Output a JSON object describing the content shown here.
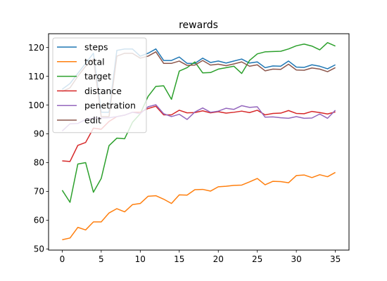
{
  "chart_data": {
    "type": "line",
    "title": "rewards",
    "xlabel": "",
    "ylabel": "",
    "xlim": [
      -1.75,
      36.75
    ],
    "ylim": [
      49.6,
      124.8
    ],
    "xticks": [
      0,
      5,
      10,
      15,
      20,
      25,
      30,
      35
    ],
    "yticks": [
      50,
      60,
      70,
      80,
      90,
      100,
      110,
      120
    ],
    "grid": false,
    "legend_position": "top-left",
    "x": [
      0,
      1,
      2,
      3,
      4,
      5,
      6,
      7,
      8,
      9,
      10,
      11,
      12,
      13,
      14,
      15,
      16,
      17,
      18,
      19,
      20,
      21,
      22,
      23,
      24,
      25,
      26,
      27,
      28,
      29,
      30,
      31,
      32,
      33,
      34,
      35
    ],
    "series": [
      {
        "name": "steps",
        "color": "#1f77b4",
        "values": [
          105.5,
          107.5,
          111,
          114.5,
          118,
          97.5,
          97.5,
          119,
          119.5,
          119.5,
          117,
          118,
          119.5,
          115.5,
          115.5,
          116.7,
          114.5,
          114.5,
          116.3,
          114.8,
          115.3,
          114.6,
          115.3,
          116,
          114.6,
          115,
          113,
          113.6,
          113.5,
          115.3,
          113.2,
          113.1,
          114,
          113.5,
          112.6,
          114
        ]
      },
      {
        "name": "total",
        "color": "#ff7f0e",
        "values": [
          53.2,
          53.8,
          57.5,
          56.6,
          59.4,
          59.4,
          62.5,
          64,
          62.9,
          65.4,
          65.8,
          68.3,
          68.5,
          67.3,
          65.8,
          68.8,
          68.7,
          70.6,
          70.7,
          70.1,
          71.6,
          71.8,
          72.1,
          72.2,
          73.3,
          74.5,
          72.3,
          73.5,
          73.4,
          73,
          75.5,
          75.7,
          74.8,
          75.8,
          75.1,
          76.6
        ]
      },
      {
        "name": "target",
        "color": "#2ca02c",
        "values": [
          70.4,
          66.2,
          79.5,
          80,
          69.7,
          74.5,
          85.9,
          88.5,
          88.3,
          94,
          97,
          103,
          106.5,
          106.7,
          102,
          111.8,
          113,
          115,
          111.2,
          111.3,
          112.5,
          113,
          113.5,
          111,
          115.5,
          117.8,
          118.5,
          118.6,
          118.7,
          119.5,
          120.6,
          121.2,
          120.5,
          119.2,
          121.7,
          120.5
        ]
      },
      {
        "name": "distance",
        "color": "#d62728",
        "values": [
          80.6,
          80.4,
          86,
          87,
          92,
          91.6,
          94.3,
          96,
          96.5,
          97.5,
          97.5,
          98.8,
          99.6,
          96.6,
          96.6,
          98.2,
          97.3,
          97.4,
          98,
          97.3,
          97.7,
          97.2,
          97.5,
          97.9,
          97.4,
          98.2,
          96.6,
          97.1,
          97.2,
          98.1,
          97.1,
          97,
          97.8,
          97.4,
          96.9,
          97.6
        ]
      },
      {
        "name": "penetration",
        "color": "#9467bd",
        "values": [
          91,
          93.5,
          93.6,
          95,
          95.5,
          95.5,
          95.6,
          96,
          96.5,
          97.5,
          97,
          99.4,
          100.1,
          97,
          96,
          96.8,
          95,
          97.6,
          99,
          97.5,
          97.9,
          98.9,
          98.5,
          99.8,
          99.2,
          99.4,
          95.8,
          95.9,
          95.6,
          95.4,
          96,
          95.4,
          95.5,
          96.9,
          95.4,
          98.2
        ]
      },
      {
        "name": "edit",
        "color": "#8c564b",
        "values": [
          104.7,
          106,
          110,
          113.5,
          116,
          96,
          96,
          117,
          118,
          118,
          116.3,
          117,
          118.5,
          114.5,
          114.5,
          115.3,
          113.8,
          113.9,
          115.5,
          113.9,
          114.2,
          113.7,
          114.3,
          115,
          113.5,
          114,
          111.9,
          112.5,
          112.4,
          114.2,
          112.2,
          112.1,
          112.9,
          112.5,
          111.6,
          113
        ]
      }
    ]
  }
}
